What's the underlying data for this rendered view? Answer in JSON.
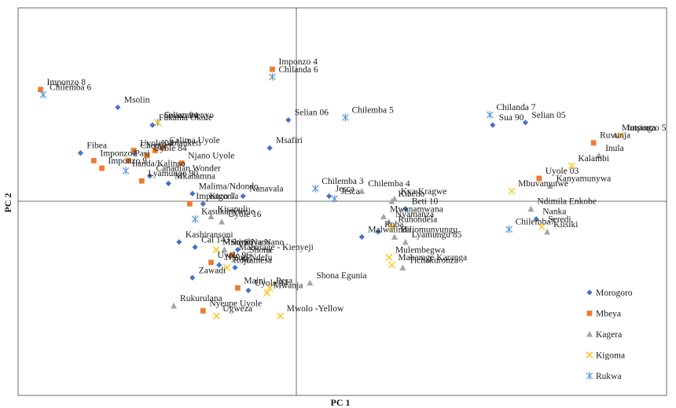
{
  "chart_data": {
    "type": "scatter",
    "title": "",
    "xlabel": "PC 1",
    "ylabel": "PC 2",
    "xlim": [
      -10,
      13
    ],
    "ylim": [
      -7,
      7
    ],
    "grid": false,
    "legend_position": "bottom-right",
    "groups": [
      {
        "name": "Morogoro",
        "marker": "diamond",
        "color": "#4472C4"
      },
      {
        "name": "Mbeya",
        "marker": "square",
        "color": "#ED7D31"
      },
      {
        "name": "Kagera",
        "marker": "triangle",
        "color": "#A5A5A5"
      },
      {
        "name": "Kigoma",
        "marker": "x",
        "color": "#FFC000"
      },
      {
        "name": "Rukwa",
        "marker": "asterisk",
        "color": "#5B9BD5"
      }
    ],
    "points": [
      {
        "label": "Imponzo 4",
        "group": "Mbeya",
        "x": -0.9,
        "y": 5.2
      },
      {
        "label": "Chilanda 6",
        "group": "Rukwa",
        "x": -0.9,
        "y": 4.9
      },
      {
        "label": "Imponzo 8",
        "group": "Mbeya",
        "x": -9.6,
        "y": 4.4
      },
      {
        "label": "Chilemba 6",
        "group": "Rukwa",
        "x": -9.5,
        "y": 4.2
      },
      {
        "label": "Msolin",
        "group": "Morogoro",
        "x": -6.7,
        "y": 3.7
      },
      {
        "label": "Selian 94",
        "group": "Rukwa",
        "x": -5.2,
        "y": 3.1
      },
      {
        "label": "Gwezamenyo",
        "group": "Kigoma",
        "x": -5.2,
        "y": 3.1
      },
      {
        "label": "Fukama Okole",
        "group": "Morogoro",
        "x": -5.4,
        "y": 3.0
      },
      {
        "label": "Selian 06",
        "group": "Morogoro",
        "x": -0.3,
        "y": 3.2
      },
      {
        "label": "Chilemba 5",
        "group": "Rukwa",
        "x": 1.8,
        "y": 3.3
      },
      {
        "label": "Chilanda 7",
        "group": "Rukwa",
        "x": 7.1,
        "y": 3.4
      },
      {
        "label": "Selian 05",
        "group": "Morogoro",
        "x": 8.4,
        "y": 3.1
      },
      {
        "label": "Sua 90",
        "group": "Morogoro",
        "x": 7.2,
        "y": 3.0
      },
      {
        "label": "Mutsinga",
        "group": "Kagera",
        "x": 11.7,
        "y": 2.6
      },
      {
        "label": "Imponzo 5",
        "group": "Kigoma",
        "x": 11.9,
        "y": 2.6
      },
      {
        "label": "Ruvunja",
        "group": "Mbeya",
        "x": 10.9,
        "y": 2.3
      },
      {
        "label": "Inula",
        "group": "Kagera",
        "x": 11.1,
        "y": 1.8
      },
      {
        "label": "Kalambi",
        "group": "Kigoma",
        "x": 10.1,
        "y": 1.4
      },
      {
        "label": "Cheupe",
        "group": "Morogoro",
        "x": -6.1,
        "y": 1.9
      },
      {
        "label": "Uyole 04",
        "group": "Mbeya",
        "x": -6.1,
        "y": 2.0
      },
      {
        "label": "Calima Uyole",
        "group": "Mbeya",
        "x": -5.0,
        "y": 2.1
      },
      {
        "label": "Kablanketi",
        "group": "Mbeya",
        "x": -5.3,
        "y": 2.0
      },
      {
        "label": "Msafiri",
        "group": "Morogoro",
        "x": -1.0,
        "y": 2.1
      },
      {
        "label": "Fibea",
        "group": "Morogoro",
        "x": -8.1,
        "y": 1.9
      },
      {
        "label": "Imponzo1",
        "group": "Mbeya",
        "x": -7.6,
        "y": 1.6
      },
      {
        "label": "Uyole 84",
        "group": "Mbeya",
        "x": -5.6,
        "y": 1.8
      },
      {
        "label": "Njano Uyole",
        "group": "Mbeya",
        "x": -4.3,
        "y": 1.5
      },
      {
        "label": "Pasi",
        "group": "Mbeya",
        "x": -6.3,
        "y": 1.6
      },
      {
        "label": "Imponzo 9",
        "group": "Mbeya",
        "x": -7.3,
        "y": 1.3
      },
      {
        "label": "Ilanda/Kalinso",
        "group": "Rukwa",
        "x": -6.4,
        "y": 1.2
      },
      {
        "label": "Canadian Wonder",
        "group": "Morogoro",
        "x": -5.5,
        "y": 1.0
      },
      {
        "label": "Lyamungo 90",
        "group": "Mbeya",
        "x": -5.8,
        "y": 0.8
      },
      {
        "label": "Mkanamna",
        "group": "Morogoro",
        "x": -4.8,
        "y": 0.7
      },
      {
        "label": "Malima/Ndondo",
        "group": "Morogoro",
        "x": -3.9,
        "y": 0.3
      },
      {
        "label": "Nanavala",
        "group": "Morogoro",
        "x": -2.0,
        "y": 0.2
      },
      {
        "label": "Chilemba 3",
        "group": "Rukwa",
        "x": 0.7,
        "y": 0.5
      },
      {
        "label": "Chilemba 4",
        "group": "Kagera",
        "x": 2.4,
        "y": 0.4
      },
      {
        "label": "Jesca",
        "group": "Morogoro",
        "x": 1.2,
        "y": 0.2
      },
      {
        "label": "Jesca",
        "group": "Rukwa",
        "x": 1.4,
        "y": 0.1
      },
      {
        "label": "Kya Kragwe",
        "group": "Kagera",
        "x": 3.6,
        "y": 0.1
      },
      {
        "label": "Kibeho",
        "group": "Kagera",
        "x": 3.5,
        "y": 0.0
      },
      {
        "label": "Uyole 03",
        "group": "Mbeya",
        "x": 8.9,
        "y": 0.9
      },
      {
        "label": "Kanyamunywa",
        "group": "Kagera",
        "x": 9.3,
        "y": 0.6
      },
      {
        "label": "Mbuvamutwe",
        "group": "Kigoma",
        "x": 7.9,
        "y": 0.4
      },
      {
        "label": "Imponzo 7",
        "group": "Mbeya",
        "x": -4.0,
        "y": -0.1
      },
      {
        "label": "Kigoma",
        "group": "Morogoro",
        "x": -3.5,
        "y": -0.1
      },
      {
        "label": "Kisapuli",
        "group": "Kagera",
        "x": -3.2,
        "y": -0.6
      },
      {
        "label": "Kasukanywele",
        "group": "Rukwa",
        "x": -3.8,
        "y": -0.7
      },
      {
        "label": "Uyole 16",
        "group": "Kagera",
        "x": -2.8,
        "y": -0.8
      },
      {
        "label": "Beti 10",
        "group": "Morogoro",
        "x": 4.0,
        "y": -0.3
      },
      {
        "label": "Mwanamwana",
        "group": "Kagera",
        "x": 3.2,
        "y": -0.6
      },
      {
        "label": "Nyamanza",
        "group": "Kagera",
        "x": 3.4,
        "y": -0.8
      },
      {
        "label": "Ndimila Enkobe",
        "group": "Kagera",
        "x": 8.6,
        "y": -0.3
      },
      {
        "label": "Nanka",
        "group": "Morogoro",
        "x": 8.8,
        "y": -0.7
      },
      {
        "label": "Seredi",
        "group": "Kigoma",
        "x": 9.0,
        "y": -1.0
      },
      {
        "label": "Kiisiki",
        "group": "Kagera",
        "x": 9.2,
        "y": -1.2
      },
      {
        "label": "Chilemba7",
        "group": "Rukwa",
        "x": 7.8,
        "y": -1.1
      },
      {
        "label": "Roba",
        "group": "Morogoro",
        "x": 3.0,
        "y": -1.2
      },
      {
        "label": "Ruhondela",
        "group": "Kigoma",
        "x": 3.5,
        "y": -1.0
      },
      {
        "label": "Biliomunyungu",
        "group": "Kagera",
        "x": 3.6,
        "y": -1.4
      },
      {
        "label": "Malwalinda",
        "group": "Morogoro",
        "x": 2.4,
        "y": -1.4
      },
      {
        "label": "Kashiransoni",
        "group": "Morogoro",
        "x": -4.4,
        "y": -1.6
      },
      {
        "label": "Lyamungu 85",
        "group": "Kagera",
        "x": 4.0,
        "y": -1.6
      },
      {
        "label": "Cal 143",
        "group": "Morogoro",
        "x": -3.8,
        "y": -1.8
      },
      {
        "label": "Mshindi",
        "group": "Kigoma",
        "x": -3.0,
        "y": -1.9
      },
      {
        "label": "Soya Nano",
        "group": "Morogoro",
        "x": -2.2,
        "y": -1.9
      },
      {
        "label": "Soya Nano",
        "group": "Kagera",
        "x": -2.7,
        "y": -1.9
      },
      {
        "label": "Maharage - Kienyeji",
        "group": "Mbeya",
        "x": -2.4,
        "y": -2.1
      },
      {
        "label": "Shona",
        "group": "Kagera",
        "x": -2.0,
        "y": -2.2
      },
      {
        "label": "Mulembegwa",
        "group": "Kigoma",
        "x": 3.4,
        "y": -2.2
      },
      {
        "label": "Njano Ndefu",
        "group": "Morogoro",
        "x": -2.9,
        "y": -2.5
      },
      {
        "label": "Uyole 96",
        "group": "Mbeya",
        "x": -3.2,
        "y": -2.4
      },
      {
        "label": "Rojo",
        "group": "Kigoma",
        "x": -2.6,
        "y": -2.6
      },
      {
        "label": "Mamesa",
        "group": "Morogoro",
        "x": -2.3,
        "y": -2.6
      },
      {
        "label": "Maharage Karanga",
        "group": "Kigoma",
        "x": 3.5,
        "y": -2.5
      },
      {
        "label": "Tichakuronza",
        "group": "Kagera",
        "x": 3.9,
        "y": -2.6
      },
      {
        "label": "Zawadi",
        "group": "Morogoro",
        "x": -3.9,
        "y": -3.0
      },
      {
        "label": "Shona Egunia",
        "group": "Kagera",
        "x": 0.5,
        "y": -3.2
      },
      {
        "label": "Maini",
        "group": "Mbeya",
        "x": -2.2,
        "y": -3.4
      },
      {
        "label": "Uyole 94",
        "group": "Morogoro",
        "x": -1.8,
        "y": -3.5
      },
      {
        "label": "Pesa",
        "group": "Kigoma",
        "x": -1.0,
        "y": -3.4
      },
      {
        "label": "Mwanja",
        "group": "Kigoma",
        "x": -1.1,
        "y": -3.6
      },
      {
        "label": "Rukurulana",
        "group": "Kagera",
        "x": -4.6,
        "y": -4.1
      },
      {
        "label": "Nyeupe Uyole",
        "group": "Mbeya",
        "x": -3.5,
        "y": -4.3
      },
      {
        "label": "Ugweza",
        "group": "Kigoma",
        "x": -3.0,
        "y": -4.5
      },
      {
        "label": "Mwolo -Yellow",
        "group": "Kigoma",
        "x": -0.6,
        "y": -4.5
      }
    ]
  }
}
